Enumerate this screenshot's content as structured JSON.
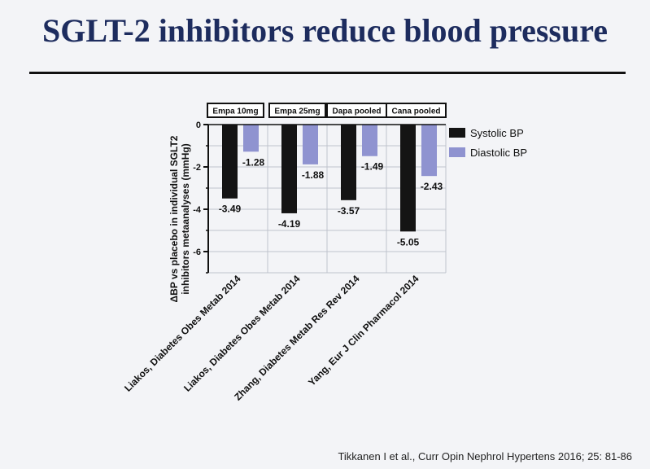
{
  "slide": {
    "title": "SGLT-2 inhibitors reduce blood pressure",
    "citation": "Tikkanen I et al., Curr Opin Nephrol Hypertens 2016; 25: 81-86"
  },
  "colors": {
    "title": "#1d2c5e",
    "systolic": "#141414",
    "diastolic": "#8f93d0",
    "grid": "#bfc3cc"
  },
  "chart_data": {
    "type": "bar",
    "ylabel": "ΔBP vs placebo in individual SGLT2 inhibitors metaanalyses (mmHg)",
    "ylim": [
      -7,
      0
    ],
    "yticks": [
      0,
      -2,
      -4,
      -6
    ],
    "grid": true,
    "legend_position": "right",
    "groups": [
      "Empa 10mg",
      "Empa 25mg",
      "Dapa pooled",
      "Cana pooled"
    ],
    "categories": [
      "Liakos, Diabetes Obes Metab 2014",
      "Liakos, Diabetes Obes Metab 2014",
      "Zhang, Diabetes Metab Res Rev 2014",
      "Yang, Eur J Clin Pharmacol 2014"
    ],
    "series": [
      {
        "name": "Systolic BP",
        "values": [
          -3.49,
          -4.19,
          -3.57,
          -5.05
        ],
        "labels": [
          "-3.49",
          "-4.19",
          "-3.57",
          "-5.05"
        ]
      },
      {
        "name": "Diastolic BP",
        "values": [
          -1.28,
          -1.88,
          -1.49,
          -2.43
        ],
        "labels": [
          "-1.28",
          "-1.88",
          "-1.49",
          "-2.43"
        ]
      }
    ]
  }
}
